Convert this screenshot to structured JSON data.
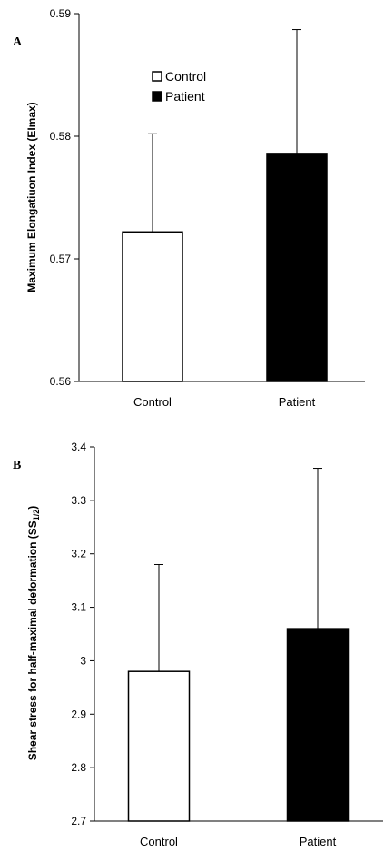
{
  "chart_data": [
    {
      "type": "bar",
      "panel_label": "A",
      "ylabel": "Maximum Elongatiuon Index (EImax)",
      "ylim": [
        0.56,
        0.59
      ],
      "yticks": [
        "0.56",
        "0.57",
        "0.58",
        "0.59"
      ],
      "categories": [
        "Control",
        "Patient"
      ],
      "values": [
        0.5722,
        0.5786
      ],
      "error_upper": [
        0.008,
        0.0101
      ],
      "colors": [
        "#ffffff",
        "#000000"
      ],
      "legend": {
        "placement": "top-left",
        "entries": [
          {
            "label": "Control",
            "color": "#ffffff"
          },
          {
            "label": "Patient",
            "color": "#000000"
          }
        ]
      }
    },
    {
      "type": "bar",
      "panel_label": "B",
      "ylabel": "Shear stress for half-maximal deformation (SS",
      "ylabel_sub": "1/2",
      "ylabel_end": ")",
      "ylim": [
        2.7,
        3.4
      ],
      "yticks": [
        "2.7",
        "2.8",
        "2.9",
        "3",
        "3.1",
        "3.2",
        "3.3",
        "3.4"
      ],
      "categories": [
        "Control",
        "Patient"
      ],
      "values": [
        2.98,
        3.06
      ],
      "error_upper": [
        0.2,
        0.3
      ],
      "colors": [
        "#ffffff",
        "#000000"
      ]
    }
  ]
}
